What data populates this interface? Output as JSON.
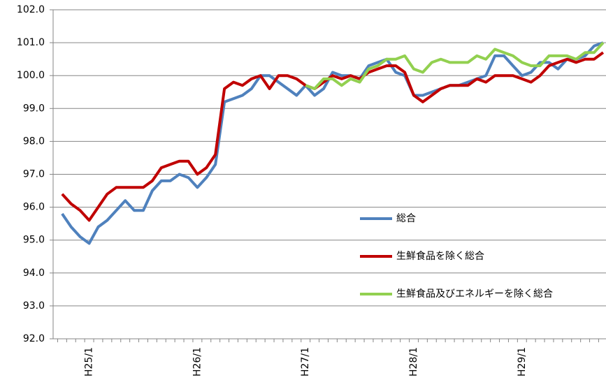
{
  "chart_data": {
    "type": "line",
    "categories": [
      null,
      null,
      null,
      "H25/1",
      null,
      null,
      null,
      null,
      null,
      null,
      null,
      null,
      null,
      null,
      null,
      "H26/1",
      null,
      null,
      null,
      null,
      null,
      null,
      null,
      null,
      null,
      null,
      null,
      "H27/1",
      null,
      null,
      null,
      null,
      null,
      null,
      null,
      null,
      null,
      null,
      null,
      "H28/1",
      null,
      null,
      null,
      null,
      null,
      null,
      null,
      null,
      null,
      null,
      null,
      "H29/1",
      null,
      null,
      null,
      null,
      null,
      null,
      null,
      null,
      null
    ],
    "series": [
      {
        "name": "総合",
        "color": "#4f81bd",
        "values": [
          95.8,
          95.4,
          95.1,
          94.9,
          95.4,
          95.6,
          95.9,
          96.2,
          95.9,
          95.9,
          96.5,
          96.8,
          96.8,
          97.0,
          96.9,
          96.6,
          96.9,
          97.3,
          99.2,
          99.3,
          99.4,
          99.6,
          100.0,
          100.0,
          99.8,
          99.6,
          99.4,
          99.7,
          99.4,
          99.6,
          100.1,
          100.0,
          100.0,
          99.9,
          100.3,
          100.4,
          100.5,
          100.1,
          100.0,
          99.4,
          99.4,
          99.5,
          99.6,
          99.7,
          99.7,
          99.8,
          99.9,
          100.0,
          100.6,
          100.6,
          100.3,
          100.0,
          100.1,
          100.4,
          100.4,
          100.2,
          100.5,
          100.5,
          100.6,
          100.9,
          101.0
        ]
      },
      {
        "name": "生鮮食品を除く総合",
        "color": "#c00000",
        "values": [
          96.4,
          96.1,
          95.9,
          95.6,
          96.0,
          96.4,
          96.6,
          96.6,
          96.6,
          96.6,
          96.8,
          97.2,
          97.3,
          97.4,
          97.4,
          97.0,
          97.2,
          97.6,
          99.6,
          99.8,
          99.7,
          99.9,
          100.0,
          99.6,
          100.0,
          100.0,
          99.9,
          99.7,
          99.6,
          99.8,
          100.0,
          99.9,
          100.0,
          99.9,
          100.1,
          100.2,
          100.3,
          100.3,
          100.1,
          99.4,
          99.2,
          99.4,
          99.6,
          99.7,
          99.7,
          99.7,
          99.9,
          99.8,
          100.0,
          100.0,
          100.0,
          99.9,
          99.8,
          100.0,
          100.3,
          100.4,
          100.5,
          100.4,
          100.5,
          100.5,
          100.7
        ]
      },
      {
        "name": "生鮮食品及びエネルギーを除く総合",
        "color": "#92d050",
        "values": [
          null,
          null,
          null,
          null,
          null,
          null,
          null,
          null,
          null,
          null,
          null,
          null,
          null,
          null,
          null,
          null,
          null,
          null,
          null,
          null,
          null,
          null,
          null,
          null,
          null,
          null,
          null,
          99.7,
          99.6,
          99.9,
          99.9,
          99.7,
          99.9,
          99.8,
          100.2,
          100.3,
          100.5,
          100.5,
          100.6,
          100.2,
          100.1,
          100.4,
          100.5,
          100.4,
          100.4,
          100.4,
          100.6,
          100.5,
          100.8,
          100.7,
          100.6,
          100.4,
          100.3,
          100.3,
          100.6,
          100.6,
          100.6,
          100.5,
          100.7,
          100.7,
          101.0
        ]
      }
    ],
    "ylim": [
      92,
      102
    ],
    "yticks": [
      {
        "value": 92,
        "label": "92.0"
      },
      {
        "value": 93,
        "label": "93.0"
      },
      {
        "value": 94,
        "label": "94.0"
      },
      {
        "value": 95,
        "label": "95.0"
      },
      {
        "value": 96,
        "label": "96.0"
      },
      {
        "value": 97,
        "label": "97.0"
      },
      {
        "value": 98,
        "label": "98.0"
      },
      {
        "value": 99,
        "label": "99.0"
      },
      {
        "value": 100,
        "label": "100.0"
      },
      {
        "value": 101,
        "label": "101.0"
      },
      {
        "value": 102,
        "label": "102.0"
      }
    ],
    "grid": true
  }
}
